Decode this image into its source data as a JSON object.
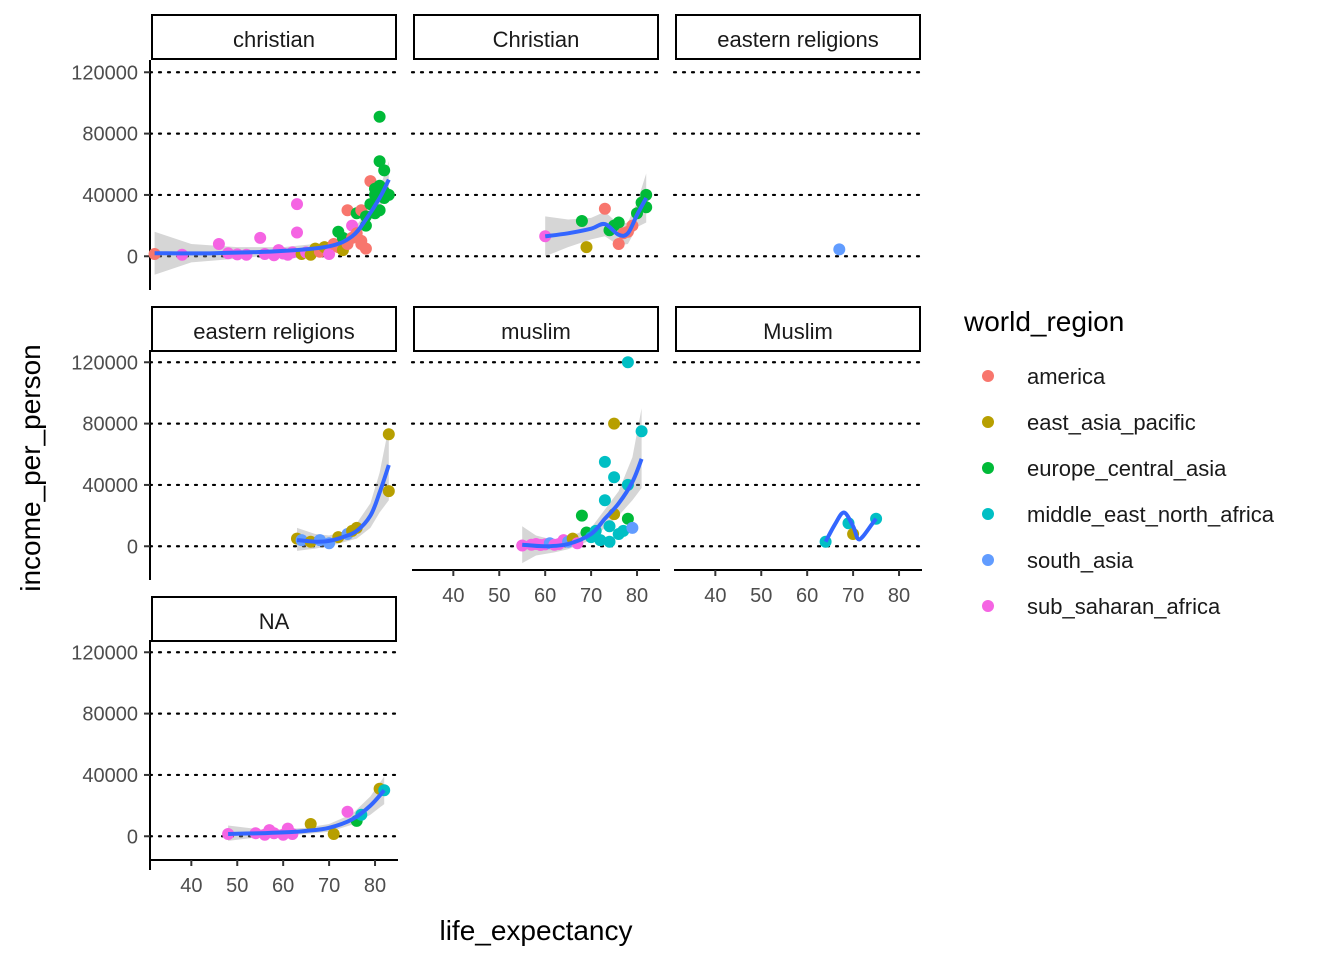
{
  "chart_data": {
    "type": "scatter",
    "title": "",
    "xlabel": "life_expectancy",
    "ylabel": "income_per_person",
    "xlim": [
      31,
      85
    ],
    "ylim": [
      -22000,
      128000
    ],
    "x_ticks": [
      40,
      50,
      60,
      70,
      80
    ],
    "y_ticks": [
      0,
      40000,
      80000,
      120000
    ],
    "grid": "horizontal dotted at y ticks",
    "legend": {
      "title": "world_region",
      "position": "right",
      "entries": [
        {
          "name": "america",
          "color": "#F8766D"
        },
        {
          "name": "east_asia_pacific",
          "color": "#B79F00"
        },
        {
          "name": "europe_central_asia",
          "color": "#00BA38"
        },
        {
          "name": "middle_east_north_africa",
          "color": "#00BFC4"
        },
        {
          "name": "south_asia",
          "color": "#619CFF"
        },
        {
          "name": "sub_saharan_africa",
          "color": "#F564E3"
        }
      ]
    },
    "smooth_color": "#3366FF",
    "band_color": "#999999",
    "facets": [
      {
        "label": "christian",
        "points": [
          [
            32,
            1500,
            "america"
          ],
          [
            38,
            1000,
            "sub_saharan_africa"
          ],
          [
            46,
            8000,
            "sub_saharan_africa"
          ],
          [
            48,
            2000,
            "sub_saharan_africa"
          ],
          [
            50,
            1200,
            "sub_saharan_africa"
          ],
          [
            52,
            1000,
            "sub_saharan_africa"
          ],
          [
            55,
            12000,
            "sub_saharan_africa"
          ],
          [
            56,
            1500,
            "sub_saharan_africa"
          ],
          [
            58,
            700,
            "sub_saharan_africa"
          ],
          [
            59,
            4000,
            "sub_saharan_africa"
          ],
          [
            60,
            1800,
            "sub_saharan_africa"
          ],
          [
            61,
            1000,
            "sub_saharan_africa"
          ],
          [
            62,
            2500,
            "sub_saharan_africa"
          ],
          [
            63,
            34000,
            "sub_saharan_africa"
          ],
          [
            63,
            15500,
            "sub_saharan_africa"
          ],
          [
            64,
            1500,
            "east_asia_pacific"
          ],
          [
            65,
            2500,
            "sub_saharan_africa"
          ],
          [
            66,
            1000,
            "east_asia_pacific"
          ],
          [
            67,
            5000,
            "east_asia_pacific"
          ],
          [
            68,
            3000,
            "america"
          ],
          [
            69,
            6000,
            "east_asia_pacific"
          ],
          [
            70,
            1500,
            "sub_saharan_africa"
          ],
          [
            71,
            8000,
            "america"
          ],
          [
            72,
            16000,
            "europe_central_asia"
          ],
          [
            72,
            6000,
            "america"
          ],
          [
            73,
            12000,
            "europe_central_asia"
          ],
          [
            73,
            4000,
            "east_asia_pacific"
          ],
          [
            74,
            8000,
            "america"
          ],
          [
            74,
            30000,
            "america"
          ],
          [
            75,
            12000,
            "america"
          ],
          [
            75,
            20000,
            "sub_saharan_africa"
          ],
          [
            76,
            15000,
            "america"
          ],
          [
            76,
            28000,
            "europe_central_asia"
          ],
          [
            77,
            10000,
            "america"
          ],
          [
            77,
            8000,
            "america"
          ],
          [
            77,
            30000,
            "america"
          ],
          [
            78,
            5000,
            "america"
          ],
          [
            78,
            20000,
            "europe_central_asia"
          ],
          [
            78,
            26000,
            "europe_central_asia"
          ],
          [
            79,
            34000,
            "europe_central_asia"
          ],
          [
            79,
            49000,
            "america"
          ],
          [
            80,
            44000,
            "europe_central_asia"
          ],
          [
            80,
            28000,
            "europe_central_asia"
          ],
          [
            80,
            40000,
            "europe_central_asia"
          ],
          [
            81,
            62000,
            "europe_central_asia"
          ],
          [
            81,
            91000,
            "europe_central_asia"
          ],
          [
            81,
            46000,
            "europe_central_asia"
          ],
          [
            81,
            30000,
            "europe_central_asia"
          ],
          [
            82,
            42000,
            "europe_central_asia"
          ],
          [
            82,
            38000,
            "europe_central_asia"
          ],
          [
            82,
            56000,
            "europe_central_asia"
          ],
          [
            83,
            40000,
            "europe_central_asia"
          ]
        ],
        "smooth": [
          [
            32,
            2000
          ],
          [
            45,
            2000
          ],
          [
            60,
            3500
          ],
          [
            70,
            6500
          ],
          [
            75,
            13000
          ],
          [
            78,
            24000
          ],
          [
            81,
            38000
          ],
          [
            83,
            50000
          ]
        ],
        "band": [
          [
            32,
            -12000,
            16000
          ],
          [
            40,
            -4000,
            8000
          ],
          [
            50,
            -1500,
            6000
          ],
          [
            60,
            1500,
            6000
          ],
          [
            70,
            4500,
            9000
          ],
          [
            75,
            10000,
            16500
          ],
          [
            78,
            20000,
            28000
          ],
          [
            81,
            32000,
            44000
          ],
          [
            83,
            40000,
            62000
          ]
        ]
      },
      {
        "label": "Christian",
        "points": [
          [
            60,
            13000,
            "sub_saharan_africa"
          ],
          [
            68,
            23000,
            "europe_central_asia"
          ],
          [
            69,
            6000,
            "east_asia_pacific"
          ],
          [
            73,
            31000,
            "america"
          ],
          [
            74,
            17000,
            "europe_central_asia"
          ],
          [
            75,
            20000,
            "europe_central_asia"
          ],
          [
            76,
            8000,
            "america"
          ],
          [
            76,
            22000,
            "europe_central_asia"
          ],
          [
            77,
            15000,
            "america"
          ],
          [
            78,
            16000,
            "america"
          ],
          [
            79,
            20000,
            "america"
          ],
          [
            80,
            28000,
            "europe_central_asia"
          ],
          [
            81,
            35000,
            "europe_central_asia"
          ],
          [
            82,
            32000,
            "europe_central_asia"
          ],
          [
            82,
            40000,
            "europe_central_asia"
          ]
        ],
        "smooth": [
          [
            60,
            13000
          ],
          [
            65,
            15000
          ],
          [
            70,
            18000
          ],
          [
            73,
            21000
          ],
          [
            76,
            14000
          ],
          [
            78,
            15000
          ],
          [
            80,
            27000
          ],
          [
            82,
            38000
          ]
        ],
        "band": [
          [
            60,
            0,
            26000
          ],
          [
            65,
            6000,
            24000
          ],
          [
            70,
            11000,
            25000
          ],
          [
            73,
            13000,
            29000
          ],
          [
            76,
            7000,
            21000
          ],
          [
            78,
            8000,
            22000
          ],
          [
            80,
            19000,
            35000
          ],
          [
            82,
            22000,
            54000
          ]
        ]
      },
      {
        "label": "eastern   religions",
        "points": [
          [
            67,
            4500,
            "south_asia"
          ]
        ],
        "smooth": [],
        "band": []
      },
      {
        "label": "eastern religions",
        "points": [
          [
            63,
            5000,
            "east_asia_pacific"
          ],
          [
            64,
            4000,
            "south_asia"
          ],
          [
            66,
            3000,
            "east_asia_pacific"
          ],
          [
            68,
            4000,
            "south_asia"
          ],
          [
            70,
            2000,
            "south_asia"
          ],
          [
            72,
            6000,
            "east_asia_pacific"
          ],
          [
            74,
            8000,
            "south_asia"
          ],
          [
            75,
            10000,
            "east_asia_pacific"
          ],
          [
            76,
            12000,
            "east_asia_pacific"
          ],
          [
            83,
            73000,
            "east_asia_pacific"
          ],
          [
            83,
            36000,
            "east_asia_pacific"
          ]
        ],
        "smooth": [
          [
            63,
            4000
          ],
          [
            67,
            3000
          ],
          [
            70,
            3500
          ],
          [
            73,
            6000
          ],
          [
            76,
            10000
          ],
          [
            79,
            20000
          ],
          [
            81,
            35000
          ],
          [
            83,
            53000
          ]
        ],
        "band": [
          [
            63,
            -3000,
            12000
          ],
          [
            67,
            -1500,
            8000
          ],
          [
            70,
            0,
            7000
          ],
          [
            73,
            2500,
            9500
          ],
          [
            76,
            5000,
            15000
          ],
          [
            79,
            12000,
            28000
          ],
          [
            81,
            22000,
            48000
          ],
          [
            83,
            30000,
            78000
          ]
        ]
      },
      {
        "label": "muslim",
        "points": [
          [
            55,
            500,
            "sub_saharan_africa"
          ],
          [
            57,
            1000,
            "sub_saharan_africa"
          ],
          [
            58,
            1500,
            "sub_saharan_africa"
          ],
          [
            59,
            800,
            "sub_saharan_africa"
          ],
          [
            60,
            1200,
            "sub_saharan_africa"
          ],
          [
            61,
            2000,
            "south_asia"
          ],
          [
            62,
            1000,
            "sub_saharan_africa"
          ],
          [
            63,
            1500,
            "sub_saharan_africa"
          ],
          [
            64,
            4000,
            "sub_saharan_africa"
          ],
          [
            65,
            3000,
            "south_asia"
          ],
          [
            66,
            5000,
            "east_asia_pacific"
          ],
          [
            67,
            2000,
            "sub_saharan_africa"
          ],
          [
            68,
            20000,
            "europe_central_asia"
          ],
          [
            69,
            9000,
            "europe_central_asia"
          ],
          [
            70,
            6000,
            "middle_east_north_africa"
          ],
          [
            71,
            10000,
            "middle_east_north_africa"
          ],
          [
            72,
            4000,
            "middle_east_north_africa"
          ],
          [
            73,
            55000,
            "middle_east_north_africa"
          ],
          [
            73,
            30000,
            "middle_east_north_africa"
          ],
          [
            74,
            13000,
            "middle_east_north_africa"
          ],
          [
            74,
            3000,
            "middle_east_north_africa"
          ],
          [
            75,
            45000,
            "middle_east_north_africa"
          ],
          [
            75,
            80000,
            "east_asia_pacific"
          ],
          [
            75,
            21000,
            "east_asia_pacific"
          ],
          [
            76,
            8000,
            "middle_east_north_africa"
          ],
          [
            77,
            10000,
            "middle_east_north_africa"
          ],
          [
            78,
            120000,
            "middle_east_north_africa"
          ],
          [
            78,
            18000,
            "europe_central_asia"
          ],
          [
            78,
            40000,
            "middle_east_north_africa"
          ],
          [
            79,
            12000,
            "south_asia"
          ],
          [
            81,
            75000,
            "middle_east_north_africa"
          ]
        ],
        "smooth": [
          [
            55,
            1000
          ],
          [
            60,
            0
          ],
          [
            65,
            1500
          ],
          [
            70,
            8000
          ],
          [
            73,
            18000
          ],
          [
            76,
            28000
          ],
          [
            79,
            42000
          ],
          [
            81,
            57000
          ]
        ],
        "band": [
          [
            55,
            -11000,
            13000
          ],
          [
            58,
            -6000,
            7000
          ],
          [
            62,
            -4000,
            4000
          ],
          [
            65,
            -2000,
            6000
          ],
          [
            70,
            4000,
            12000
          ],
          [
            73,
            12000,
            24000
          ],
          [
            76,
            20000,
            36000
          ],
          [
            79,
            30000,
            58000
          ],
          [
            81,
            38000,
            90000
          ]
        ]
      },
      {
        "label": "Muslim",
        "points": [
          [
            64,
            3000,
            "middle_east_north_africa"
          ],
          [
            69,
            15000,
            "middle_east_north_africa"
          ],
          [
            70,
            8000,
            "east_asia_pacific"
          ],
          [
            75,
            18000,
            "middle_east_north_africa"
          ]
        ],
        "smooth": [
          [
            64,
            3000
          ],
          [
            66,
            14000
          ],
          [
            68,
            22000
          ],
          [
            70,
            13000
          ],
          [
            71,
            5000
          ],
          [
            72,
            6000
          ],
          [
            74,
            14000
          ],
          [
            75,
            18000
          ]
        ],
        "band": []
      },
      {
        "label": "NA",
        "points": [
          [
            48,
            1500,
            "sub_saharan_africa"
          ],
          [
            54,
            2000,
            "sub_saharan_africa"
          ],
          [
            56,
            1000,
            "sub_saharan_africa"
          ],
          [
            57,
            4000,
            "sub_saharan_africa"
          ],
          [
            58,
            2000,
            "sub_saharan_africa"
          ],
          [
            60,
            1000,
            "sub_saharan_africa"
          ],
          [
            61,
            5000,
            "sub_saharan_africa"
          ],
          [
            62,
            1500,
            "sub_saharan_africa"
          ],
          [
            66,
            8000,
            "east_asia_pacific"
          ],
          [
            71,
            1500,
            "east_asia_pacific"
          ],
          [
            74,
            16000,
            "sub_saharan_africa"
          ],
          [
            76,
            10000,
            "europe_central_asia"
          ],
          [
            77,
            14000,
            "middle_east_north_africa"
          ],
          [
            81,
            31000,
            "east_asia_pacific"
          ],
          [
            82,
            30000,
            "middle_east_north_africa"
          ]
        ],
        "smooth": [
          [
            48,
            1500
          ],
          [
            55,
            2000
          ],
          [
            60,
            2500
          ],
          [
            65,
            3500
          ],
          [
            70,
            5500
          ],
          [
            75,
            11000
          ],
          [
            79,
            20000
          ],
          [
            82,
            30000
          ]
        ],
        "band": [
          [
            48,
            -3000,
            7000
          ],
          [
            55,
            -500,
            4500
          ],
          [
            60,
            500,
            4500
          ],
          [
            65,
            1500,
            5500
          ],
          [
            70,
            3000,
            8000
          ],
          [
            75,
            7500,
            14500
          ],
          [
            79,
            14000,
            26000
          ],
          [
            82,
            21000,
            39000
          ]
        ]
      }
    ]
  }
}
